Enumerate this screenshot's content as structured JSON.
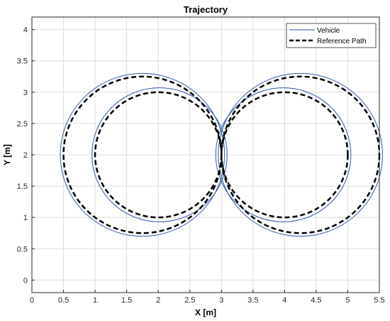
{
  "chart_data": {
    "type": "line",
    "title": "Trajectory",
    "xlabel": "X [m]",
    "ylabel": "Y [m]",
    "xlim": [
      0,
      5.5
    ],
    "ylim": [
      -0.2,
      4.2
    ],
    "xticks": [
      "0",
      "0.5",
      "1",
      "1.5",
      "2",
      "2.5",
      "3",
      "3.5",
      "4",
      "4.5",
      "5",
      "5.5"
    ],
    "yticks": [
      "0",
      "0.5",
      "1",
      "1.5",
      "2",
      "2.5",
      "3",
      "3.5",
      "4"
    ],
    "grid": true,
    "legend_position": "top-right",
    "legend": [
      "Vehicle",
      "Reference Path"
    ],
    "series": [
      {
        "name": "Vehicle",
        "color": "#2f5aa8",
        "style": "solid",
        "circles": [
          {
            "cx": 1.75,
            "cy": 2.0,
            "r": 1.3
          },
          {
            "cx": 4.25,
            "cy": 2.0,
            "r": 1.3
          },
          {
            "cx": 2.02,
            "cy": 2.0,
            "r": 1.07
          },
          {
            "cx": 3.98,
            "cy": 2.0,
            "r": 1.07
          }
        ]
      },
      {
        "name": "Reference Path",
        "color": "#000000",
        "style": "dashed",
        "circles": [
          {
            "cx": 1.75,
            "cy": 2.0,
            "r": 1.25
          },
          {
            "cx": 4.25,
            "cy": 2.0,
            "r": 1.25
          },
          {
            "cx": 2.0,
            "cy": 2.0,
            "r": 1.0
          },
          {
            "cx": 4.0,
            "cy": 2.0,
            "r": 1.0
          }
        ]
      }
    ]
  }
}
